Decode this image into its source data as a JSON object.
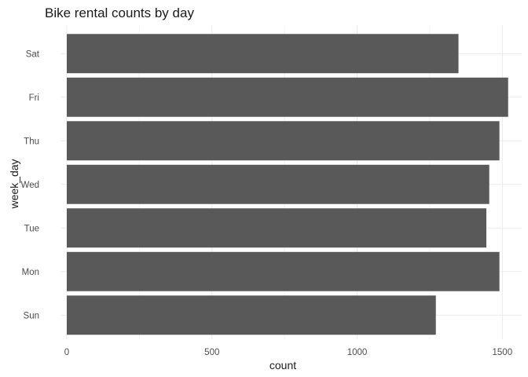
{
  "chart_data": {
    "type": "bar",
    "orientation": "horizontal",
    "title": "Bike rental counts by day",
    "xlabel": "count",
    "ylabel": "week_day",
    "categories": [
      "Sun",
      "Mon",
      "Tue",
      "Wed",
      "Thu",
      "Fri",
      "Sat"
    ],
    "values": [
      1271,
      1490,
      1445,
      1455,
      1490,
      1520,
      1349
    ],
    "xlim": [
      0,
      1560
    ],
    "xticks": [
      0,
      500,
      1000,
      1500
    ],
    "grid": true,
    "legend": "none",
    "bar_color": "#595959"
  }
}
